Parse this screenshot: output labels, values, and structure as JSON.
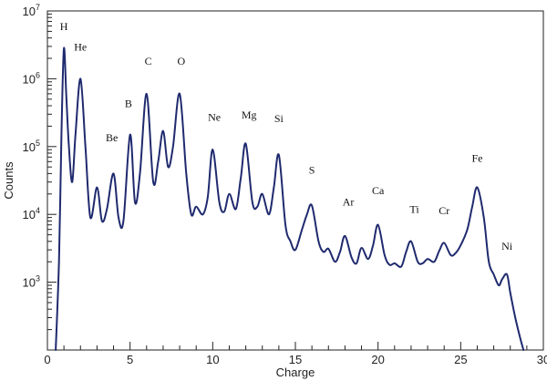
{
  "chart_data": {
    "type": "line",
    "xlabel": "Charge",
    "ylabel": "Counts",
    "xlim": [
      0,
      30
    ],
    "ylim": [
      100,
      10000000
    ],
    "y_scale": "log",
    "grid": false,
    "x_ticks": [
      0,
      5,
      10,
      15,
      20,
      25,
      30
    ],
    "y_ticks": [
      {
        "value": 1000,
        "base": "10",
        "exp": "3"
      },
      {
        "value": 10000,
        "base": "10",
        "exp": "4"
      },
      {
        "value": 100000,
        "base": "10",
        "exp": "5"
      },
      {
        "value": 1000000,
        "base": "10",
        "exp": "6"
      },
      {
        "value": 10000000,
        "base": "10",
        "exp": "7"
      }
    ],
    "line_color": "#1f2a6e",
    "series": [
      {
        "x": [
          0.5,
          0.7,
          0.85,
          1.0,
          1.15,
          1.3,
          1.5,
          1.7,
          2.0,
          2.3,
          2.6,
          3.0,
          3.3,
          3.6,
          4.0,
          4.3,
          4.6,
          5.0,
          5.3,
          5.6,
          6.0,
          6.4,
          6.7,
          7.0,
          7.3,
          7.6,
          8.0,
          8.4,
          8.7,
          9.0,
          9.4,
          9.7,
          10.0,
          10.4,
          10.7,
          11.0,
          11.4,
          11.7,
          12.0,
          12.4,
          12.7,
          13.0,
          13.4,
          13.7,
          14.0,
          14.4,
          14.7,
          15.0,
          15.4,
          15.7,
          16.0,
          16.4,
          16.7,
          17.0,
          17.4,
          17.7,
          18.0,
          18.4,
          18.7,
          19.0,
          19.4,
          19.7,
          20.0,
          20.4,
          20.7,
          21.0,
          21.4,
          21.7,
          22.0,
          22.4,
          22.7,
          23.0,
          23.4,
          23.7,
          24.0,
          24.4,
          24.7,
          25.0,
          25.4,
          25.7,
          26.0,
          26.4,
          26.7,
          27.0,
          27.3,
          27.5,
          27.8,
          28.0,
          28.3,
          28.6,
          28.8
        ],
        "y": [
          100,
          2000,
          150000,
          2800000,
          500000,
          100000,
          30000,
          150000,
          1000000,
          100000,
          9000,
          25000,
          8000,
          12000,
          40000,
          9000,
          8000,
          150000,
          15000,
          40000,
          600000,
          30000,
          60000,
          170000,
          50000,
          100000,
          600000,
          40000,
          10000,
          13000,
          10000,
          18000,
          90000,
          15000,
          11000,
          20000,
          12000,
          35000,
          110000,
          15000,
          13000,
          20000,
          10000,
          25000,
          75000,
          7000,
          4000,
          3000,
          6000,
          10000,
          13500,
          4000,
          2800,
          3100,
          2000,
          2800,
          4800,
          2300,
          1900,
          3200,
          2200,
          3500,
          7000,
          2500,
          1800,
          1900,
          1700,
          2800,
          4000,
          2000,
          1900,
          2200,
          2000,
          2900,
          3800,
          2500,
          2700,
          3500,
          6000,
          13000,
          25000,
          9000,
          2000,
          1300,
          900,
          1100,
          1300,
          700,
          300,
          150,
          100
        ]
      }
    ],
    "annotations": [
      {
        "label": "H",
        "x": 1.0,
        "y": 5200000
      },
      {
        "label": "He",
        "x": 2.0,
        "y": 2600000
      },
      {
        "label": "Be",
        "x": 3.9,
        "y": 120000
      },
      {
        "label": "B",
        "x": 4.9,
        "y": 380000
      },
      {
        "label": "C",
        "x": 6.1,
        "y": 1600000
      },
      {
        "label": "O",
        "x": 8.1,
        "y": 1600000
      },
      {
        "label": "Ne",
        "x": 10.1,
        "y": 240000
      },
      {
        "label": "Mg",
        "x": 12.2,
        "y": 260000
      },
      {
        "label": "Si",
        "x": 14.0,
        "y": 230000
      },
      {
        "label": "S",
        "x": 16.0,
        "y": 40000
      },
      {
        "label": "Ar",
        "x": 18.2,
        "y": 13500
      },
      {
        "label": "Ca",
        "x": 20.0,
        "y": 20000
      },
      {
        "label": "Ti",
        "x": 22.2,
        "y": 10500
      },
      {
        "label": "Cr",
        "x": 24.0,
        "y": 10000
      },
      {
        "label": "Fe",
        "x": 26.0,
        "y": 60000
      },
      {
        "label": "Ni",
        "x": 27.8,
        "y": 3000
      }
    ]
  }
}
